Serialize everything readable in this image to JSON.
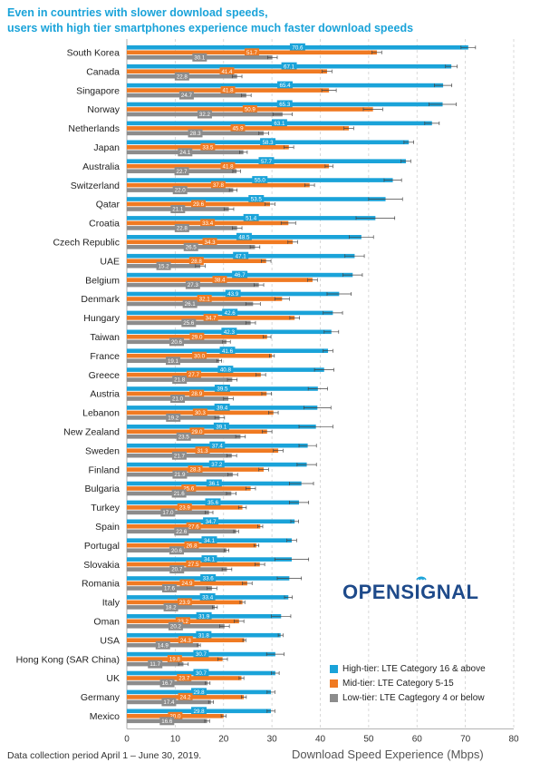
{
  "title_lines": [
    "Even in countries with slower download speeds,",
    "users with high tier smartphones experience much faster download speeds"
  ],
  "footnote": "Data collection period April 1 – June 30, 2019.",
  "logo": {
    "pre": "OPENS",
    "glyph": "I",
    "post": "GNAL"
  },
  "colors": {
    "high": "#1aa3d9",
    "mid": "#f07a22",
    "low": "#8c8c8c",
    "title": "#1aa3d9",
    "logo": "#1e4a8a"
  },
  "chart_data": {
    "type": "bar",
    "orientation": "horizontal",
    "xlabel": "Download Speed Experience (Mbps)",
    "xlim": [
      0,
      80
    ],
    "xticks": [
      0,
      10,
      20,
      30,
      40,
      50,
      60,
      70,
      80
    ],
    "grid": "vertical dashed",
    "legend_position": "bottom-right",
    "categories": [
      "South Korea",
      "Canada",
      "Singapore",
      "Norway",
      "Netherlands",
      "Japan",
      "Australia",
      "Switzerland",
      "Qatar",
      "Croatia",
      "Czech Republic",
      "UAE",
      "Belgium",
      "Denmark",
      "Hungary",
      "Taiwan",
      "France",
      "Greece",
      "Austria",
      "Lebanon",
      "New Zealand",
      "Sweden",
      "Finland",
      "Bulgaria",
      "Turkey",
      "Spain",
      "Portugal",
      "Slovakia",
      "Romania",
      "Italy",
      "Oman",
      "USA",
      "Hong Kong (SAR China)",
      "UK",
      "Germany",
      "Mexico"
    ],
    "series": [
      {
        "name": "High-tier: LTE Category 16 & above",
        "key": "high",
        "values": [
          70.6,
          67.1,
          65.4,
          65.3,
          63.1,
          58.3,
          57.7,
          55.0,
          53.5,
          51.4,
          48.5,
          47.1,
          46.7,
          43.9,
          42.6,
          42.3,
          41.6,
          40.8,
          39.5,
          39.4,
          39.1,
          37.4,
          37.2,
          36.1,
          35.6,
          34.7,
          34.1,
          34.1,
          33.6,
          33.4,
          31.9,
          31.8,
          30.7,
          30.7,
          29.8,
          29.8
        ],
        "errors": [
          1.5,
          1.2,
          1.8,
          2.8,
          1.5,
          1.0,
          1.0,
          1.8,
          3.5,
          4.0,
          2.5,
          2.0,
          2.0,
          2.5,
          2.0,
          1.5,
          1.0,
          2.0,
          2.0,
          2.8,
          3.5,
          1.8,
          2.0,
          2.5,
          2.0,
          0.8,
          1.0,
          3.5,
          2.5,
          0.8,
          2.0,
          0.5,
          1.8,
          0.8,
          0.8,
          0.8
        ]
      },
      {
        "name": "Mid-tier: LTE Category 5-15",
        "key": "mid",
        "values": [
          51.7,
          41.4,
          41.8,
          50.9,
          45.9,
          33.5,
          41.8,
          37.8,
          29.6,
          33.4,
          34.3,
          28.8,
          38.4,
          32.1,
          34.7,
          29.0,
          30.0,
          27.7,
          28.9,
          30.3,
          29.0,
          31.3,
          28.3,
          25.6,
          23.9,
          27.6,
          26.8,
          27.5,
          24.9,
          23.9,
          23.2,
          24.3,
          19.8,
          23.7,
          24.2,
          20.0
        ],
        "errors": [
          1.0,
          1.0,
          1.5,
          2.0,
          1.0,
          1.0,
          0.8,
          1.0,
          1.0,
          1.5,
          1.0,
          1.0,
          1.0,
          1.5,
          1.0,
          0.8,
          0.5,
          1.0,
          1.0,
          1.0,
          1.0,
          1.0,
          1.0,
          1.0,
          0.8,
          0.5,
          0.5,
          1.0,
          1.0,
          0.5,
          1.0,
          0.3,
          1.0,
          0.5,
          0.5,
          0.5
        ]
      },
      {
        "name": "Low-tier: LTE Cagtegory 4 or below",
        "key": "low",
        "values": [
          30.1,
          22.8,
          24.7,
          32.2,
          28.3,
          24.1,
          22.7,
          22.0,
          21.1,
          22.8,
          26.5,
          15.2,
          27.3,
          26.1,
          25.6,
          20.6,
          19.1,
          21.8,
          21.0,
          19.2,
          23.5,
          21.7,
          21.9,
          21.6,
          17.0,
          22.6,
          20.6,
          20.7,
          17.6,
          18.2,
          20.2,
          14.9,
          11.7,
          16.7,
          17.4,
          16.6
        ],
        "errors": [
          1.0,
          1.0,
          1.0,
          2.0,
          1.0,
          0.8,
          0.8,
          0.8,
          1.0,
          1.0,
          1.0,
          1.0,
          1.0,
          1.5,
          1.0,
          0.8,
          0.5,
          1.0,
          1.0,
          1.0,
          1.0,
          1.0,
          1.0,
          1.0,
          0.8,
          0.5,
          0.5,
          1.0,
          1.0,
          0.5,
          1.0,
          0.3,
          1.0,
          0.5,
          0.5,
          0.5
        ]
      }
    ]
  }
}
